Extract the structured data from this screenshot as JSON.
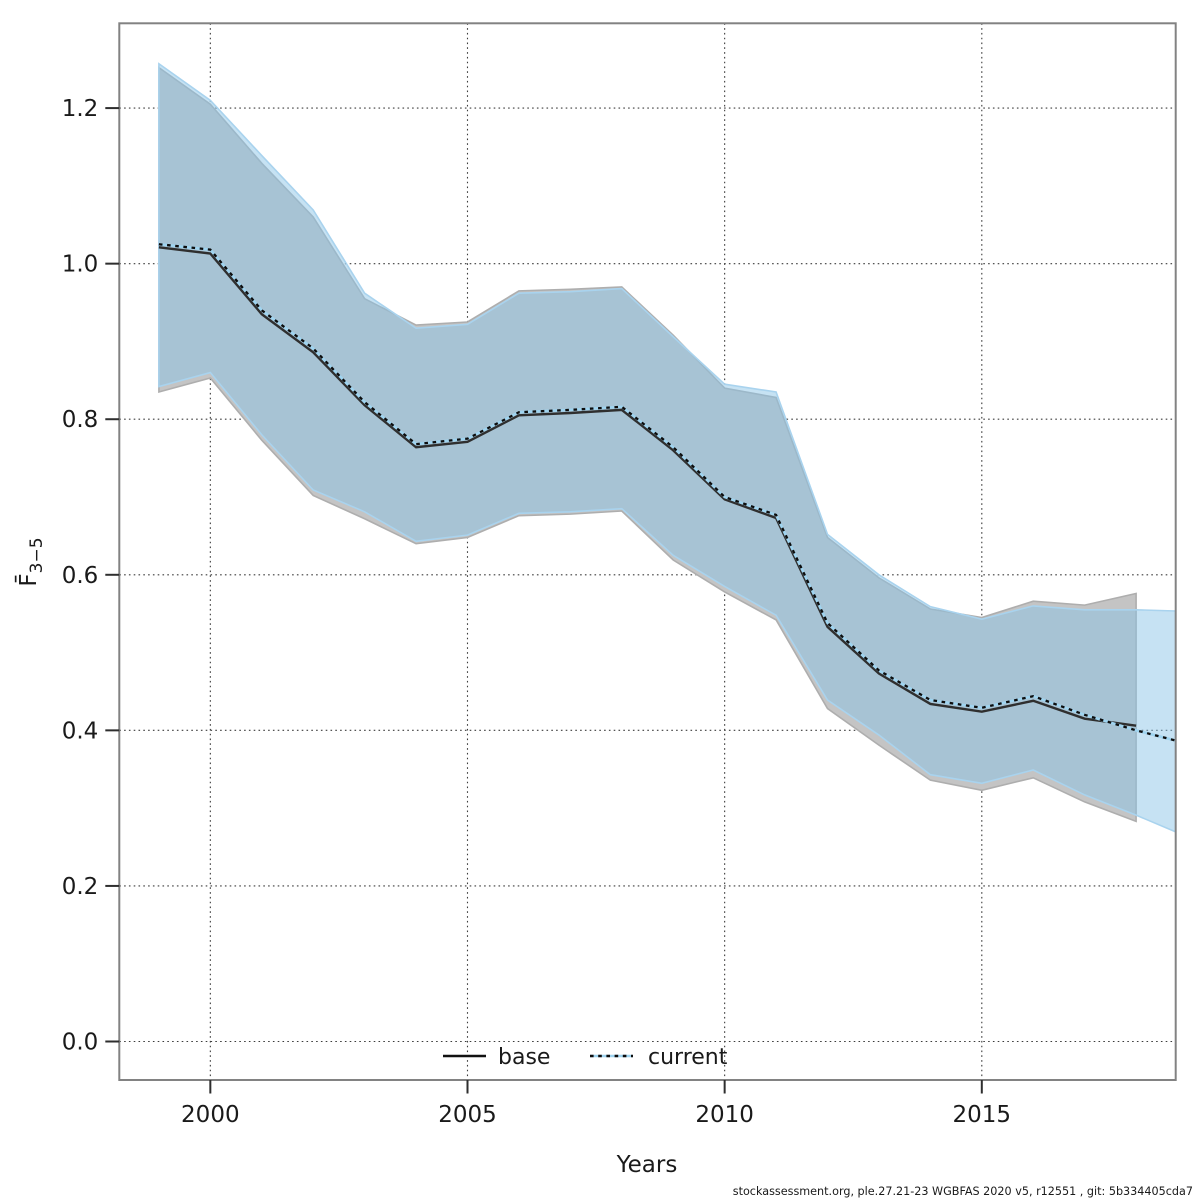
{
  "page": {
    "background_color": "#ffffff"
  },
  "footer": {
    "credit": "stockassessment.org, ple.27.21-23 WGBFAS 2020 v5, r12551 , git: 5b334405cda7"
  },
  "chart_data": {
    "type": "area",
    "title": "",
    "xlabel": "Years",
    "ylabel": {
      "main": "F̄",
      "subscript": "3−5"
    },
    "grid": "dotted",
    "xlim": [
      1998.23,
      2018.77
    ],
    "ylim": [
      -0.0495,
      1.309
    ],
    "x_ticks": [
      "2000",
      "2005",
      "2010",
      "2015"
    ],
    "x_tick_years": [
      2000,
      2005,
      2010,
      2015
    ],
    "y_ticks": [
      "0.0",
      "0.2",
      "0.4",
      "0.6",
      "0.8",
      "1.0",
      "1.2"
    ],
    "y_tick_values": [
      0.0,
      0.2,
      0.4,
      0.6,
      0.8,
      1.0,
      1.2
    ],
    "x": [
      1999,
      2000,
      2001,
      2002,
      2003,
      2004,
      2005,
      2006,
      2007,
      2008,
      2009,
      2010,
      2011,
      2012,
      2013,
      2014,
      2015,
      2016,
      2017,
      2018,
      2019
    ],
    "series": [
      {
        "name": "base",
        "line_style": "solid",
        "values": [
          1.021,
          1.013,
          0.935,
          0.886,
          0.818,
          0.764,
          0.771,
          0.805,
          0.808,
          0.812,
          0.76,
          0.697,
          0.673,
          0.533,
          0.473,
          0.434,
          0.424,
          0.438,
          0.415,
          0.406
        ],
        "ci_hi": [
          1.252,
          1.205,
          1.129,
          1.06,
          0.955,
          0.921,
          0.925,
          0.965,
          0.967,
          0.97,
          0.908,
          0.84,
          0.828,
          0.648,
          0.596,
          0.556,
          0.545,
          0.566,
          0.561,
          0.576
        ],
        "ci_lo": [
          0.835,
          0.853,
          0.773,
          0.702,
          0.672,
          0.64,
          0.648,
          0.676,
          0.678,
          0.682,
          0.619,
          0.578,
          0.542,
          0.428,
          0.381,
          0.336,
          0.323,
          0.339,
          0.308,
          0.283
        ]
      },
      {
        "name": "current",
        "line_style": "dotted",
        "values": [
          1.025,
          1.018,
          0.94,
          0.891,
          0.822,
          0.768,
          0.775,
          0.809,
          0.812,
          0.816,
          0.764,
          0.7,
          0.677,
          0.538,
          0.477,
          0.439,
          0.429,
          0.444,
          0.42,
          0.4,
          0.383
        ],
        "ci_hi": [
          1.257,
          1.21,
          1.139,
          1.069,
          0.962,
          0.917,
          0.922,
          0.962,
          0.964,
          0.968,
          0.906,
          0.845,
          0.835,
          0.652,
          0.6,
          0.559,
          0.543,
          0.56,
          0.555,
          0.555,
          0.553
        ],
        "ci_lo": [
          0.842,
          0.86,
          0.78,
          0.709,
          0.681,
          0.643,
          0.651,
          0.679,
          0.681,
          0.685,
          0.625,
          0.585,
          0.548,
          0.439,
          0.394,
          0.343,
          0.332,
          0.349,
          0.317,
          0.291,
          0.263
        ]
      }
    ],
    "legend": {
      "position": "bottom-center-inside",
      "items": [
        {
          "label": "base"
        },
        {
          "label": "current"
        }
      ]
    }
  },
  "colors": {
    "base_band_fill": "#c4c4c4",
    "base_band_edge": "#aeaeae",
    "current_band_fill": "#87c2e6",
    "current_band_alpha": 0.48,
    "current_band_edge": "#a9d3ee",
    "base_line": "#2f2f2f",
    "current_line_dot": "#0d0d0d",
    "current_line_under": "#9fd4f0",
    "grid": "#3c3c3c",
    "axis_border": "#828282",
    "tick": "#2e2e2e",
    "text": "#1a1a1a"
  }
}
